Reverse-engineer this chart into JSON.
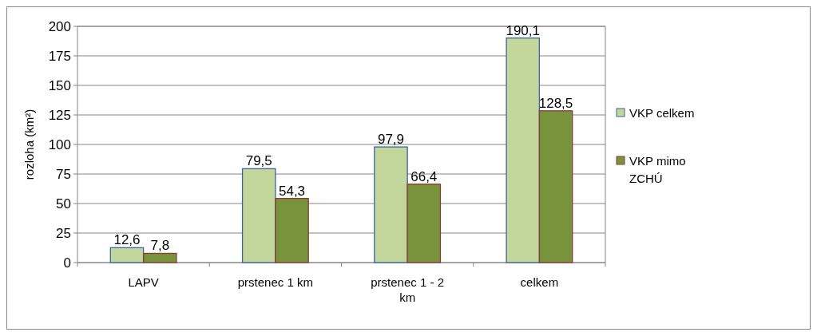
{
  "chart_data": {
    "type": "bar",
    "ylabel": "rozloha (km²)",
    "categories": [
      "LAPV",
      "prstenec 1 km",
      "prstenec 1 - 2 km",
      "celkem"
    ],
    "series": [
      {
        "name": "VKP celkem",
        "color": "#c3d69b",
        "values": [
          12.6,
          79.5,
          97.9,
          190.1
        ],
        "value_labels": [
          "12,6",
          "79,5",
          "97,9",
          "190,1"
        ]
      },
      {
        "name": "VKP mimo ZCHÚ",
        "color": "#77933c",
        "values": [
          7.8,
          54.3,
          66.4,
          128.5
        ],
        "value_labels": [
          "7,8",
          "54,3",
          "66,4",
          "128,5"
        ]
      }
    ],
    "ylim": [
      0,
      200
    ],
    "yticks": [
      0,
      25,
      50,
      75,
      100,
      125,
      150,
      175,
      200
    ],
    "grid": "y",
    "legend": "right"
  }
}
